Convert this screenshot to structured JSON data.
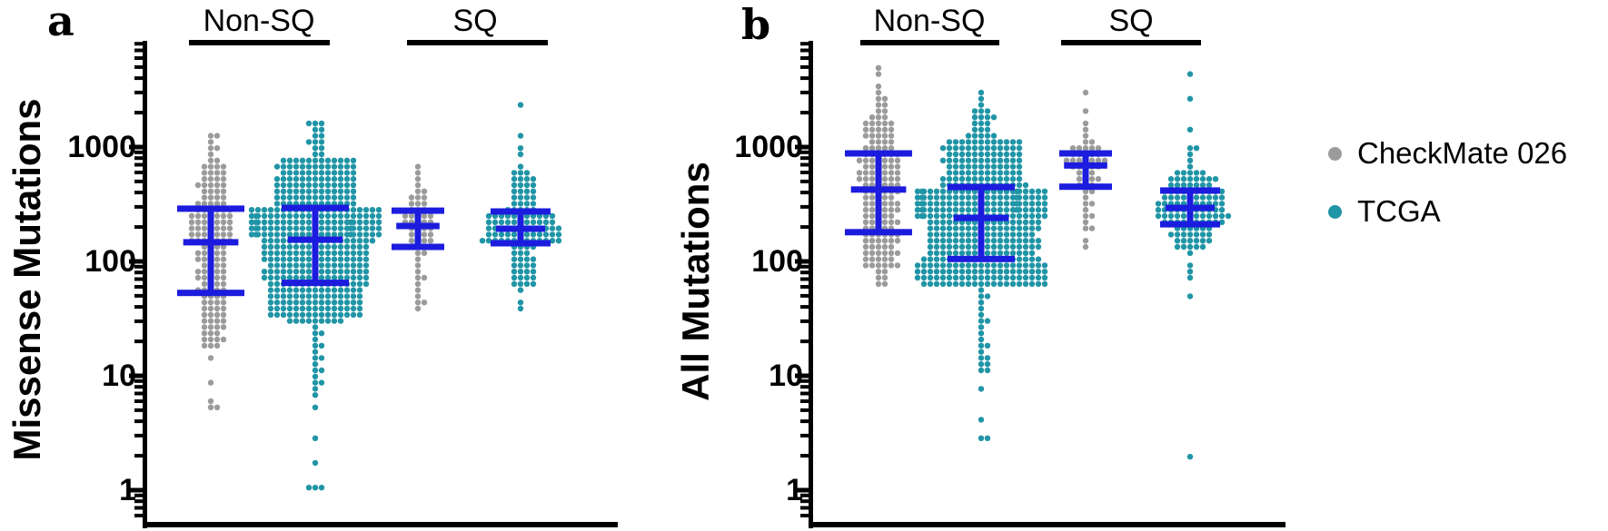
{
  "figure": {
    "colors": {
      "checkmate": "#9B9B9B",
      "tcga": "#2095A6",
      "errorbar": "#1C1CDE",
      "axis": "#000000",
      "background": "#FFFFFF"
    }
  },
  "legend": {
    "items": [
      {
        "label": "CheckMate 026",
        "color_key": "checkmate"
      },
      {
        "label": "TCGA",
        "color_key": "tcga"
      }
    ]
  },
  "chart_data": [
    {
      "type": "scatter",
      "subtype": "beeswarm-log",
      "panel_letter": "a",
      "ylabel": "Missense Mutations",
      "groups": [
        "Non-SQ",
        "SQ"
      ],
      "ytick_labels": [
        "1000",
        "100",
        "10",
        "1"
      ],
      "yticks": [
        1000,
        100,
        10,
        1
      ],
      "ylim": [
        0.5,
        8500
      ],
      "grid": false,
      "legend_position": "right",
      "series": [
        {
          "name": "CheckMate 026",
          "group": "Non-SQ",
          "color_key": "checkmate",
          "n": 155,
          "error_bar": {
            "q1": 53,
            "median": 147,
            "q3": 289
          },
          "quantiles": [
            [
              0,
              5
            ],
            [
              0.01,
              5
            ],
            [
              0.03,
              18
            ],
            [
              0.25,
              53
            ],
            [
              0.5,
              147
            ],
            [
              0.75,
              289
            ],
            [
              0.95,
              700
            ],
            [
              1,
              1300
            ]
          ]
        },
        {
          "name": "TCGA",
          "group": "Non-SQ",
          "color_key": "tcga",
          "n": 470,
          "error_bar": {
            "q1": 65,
            "median": 155,
            "q3": 294
          },
          "quantiles": [
            [
              0,
              1
            ],
            [
              0.004,
              1
            ],
            [
              0.012,
              7
            ],
            [
              0.05,
              30
            ],
            [
              0.25,
              65
            ],
            [
              0.5,
              155
            ],
            [
              0.75,
              294
            ],
            [
              0.97,
              800
            ],
            [
              1,
              1700
            ]
          ]
        },
        {
          "name": "CheckMate 026",
          "group": "SQ",
          "color_key": "checkmate",
          "n": 52,
          "error_bar": {
            "q1": 134,
            "median": 204,
            "q3": 278
          },
          "quantiles": [
            [
              0,
              40
            ],
            [
              0.05,
              48
            ],
            [
              0.25,
              134
            ],
            [
              0.5,
              204
            ],
            [
              0.75,
              278
            ],
            [
              0.93,
              420
            ],
            [
              1,
              650
            ]
          ]
        },
        {
          "name": "TCGA",
          "group": "SQ",
          "color_key": "tcga",
          "n": 122,
          "error_bar": {
            "q1": 144,
            "median": 193,
            "q3": 273
          },
          "quantiles": [
            [
              0,
              38
            ],
            [
              0.02,
              60
            ],
            [
              0.25,
              144
            ],
            [
              0.5,
              193
            ],
            [
              0.75,
              273
            ],
            [
              0.96,
              600
            ],
            [
              0.99,
              1100
            ],
            [
              1,
              2300
            ]
          ]
        }
      ]
    },
    {
      "type": "scatter",
      "subtype": "beeswarm-log",
      "panel_letter": "b",
      "ylabel": "All Mutations",
      "groups": [
        "Non-SQ",
        "SQ"
      ],
      "ytick_labels": [
        "1000",
        "100",
        "10",
        "1"
      ],
      "yticks": [
        1000,
        100,
        10,
        1
      ],
      "ylim": [
        0.5,
        8500
      ],
      "grid": false,
      "legend_position": "right",
      "series": [
        {
          "name": "CheckMate 026",
          "group": "Non-SQ",
          "color_key": "checkmate",
          "n": 155,
          "error_bar": {
            "q1": 180,
            "median": 425,
            "q3": 880
          },
          "quantiles": [
            [
              0,
              60
            ],
            [
              0.03,
              85
            ],
            [
              0.25,
              180
            ],
            [
              0.5,
              425
            ],
            [
              0.75,
              880
            ],
            [
              0.93,
              1800
            ],
            [
              0.98,
              2800
            ],
            [
              1,
              5000
            ]
          ]
        },
        {
          "name": "TCGA",
          "group": "Non-SQ",
          "color_key": "tcga",
          "n": 470,
          "error_bar": {
            "q1": 105,
            "median": 240,
            "q3": 447
          },
          "quantiles": [
            [
              0,
              3
            ],
            [
              0.003,
              3
            ],
            [
              0.008,
              11
            ],
            [
              0.02,
              15
            ],
            [
              0.05,
              60
            ],
            [
              0.25,
              105
            ],
            [
              0.5,
              240
            ],
            [
              0.75,
              447
            ],
            [
              0.96,
              1200
            ],
            [
              0.995,
              2200
            ],
            [
              1,
              2900
            ]
          ]
        },
        {
          "name": "CheckMate 026",
          "group": "SQ",
          "color_key": "checkmate",
          "n": 52,
          "error_bar": {
            "q1": 450,
            "median": 690,
            "q3": 880
          },
          "quantiles": [
            [
              0,
              130
            ],
            [
              0.04,
              190
            ],
            [
              0.25,
              450
            ],
            [
              0.5,
              690
            ],
            [
              0.75,
              880
            ],
            [
              0.9,
              1100
            ],
            [
              0.96,
              1500
            ],
            [
              1,
              3100
            ]
          ]
        },
        {
          "name": "TCGA",
          "group": "SQ",
          "color_key": "tcga",
          "n": 122,
          "error_bar": {
            "q1": 211,
            "median": 294,
            "q3": 417
          },
          "quantiles": [
            [
              0,
              2
            ],
            [
              0.009,
              65
            ],
            [
              0.05,
              130
            ],
            [
              0.25,
              211
            ],
            [
              0.5,
              294
            ],
            [
              0.75,
              417
            ],
            [
              0.93,
              600
            ],
            [
              0.98,
              1100
            ],
            [
              1,
              4500
            ]
          ]
        }
      ]
    }
  ]
}
